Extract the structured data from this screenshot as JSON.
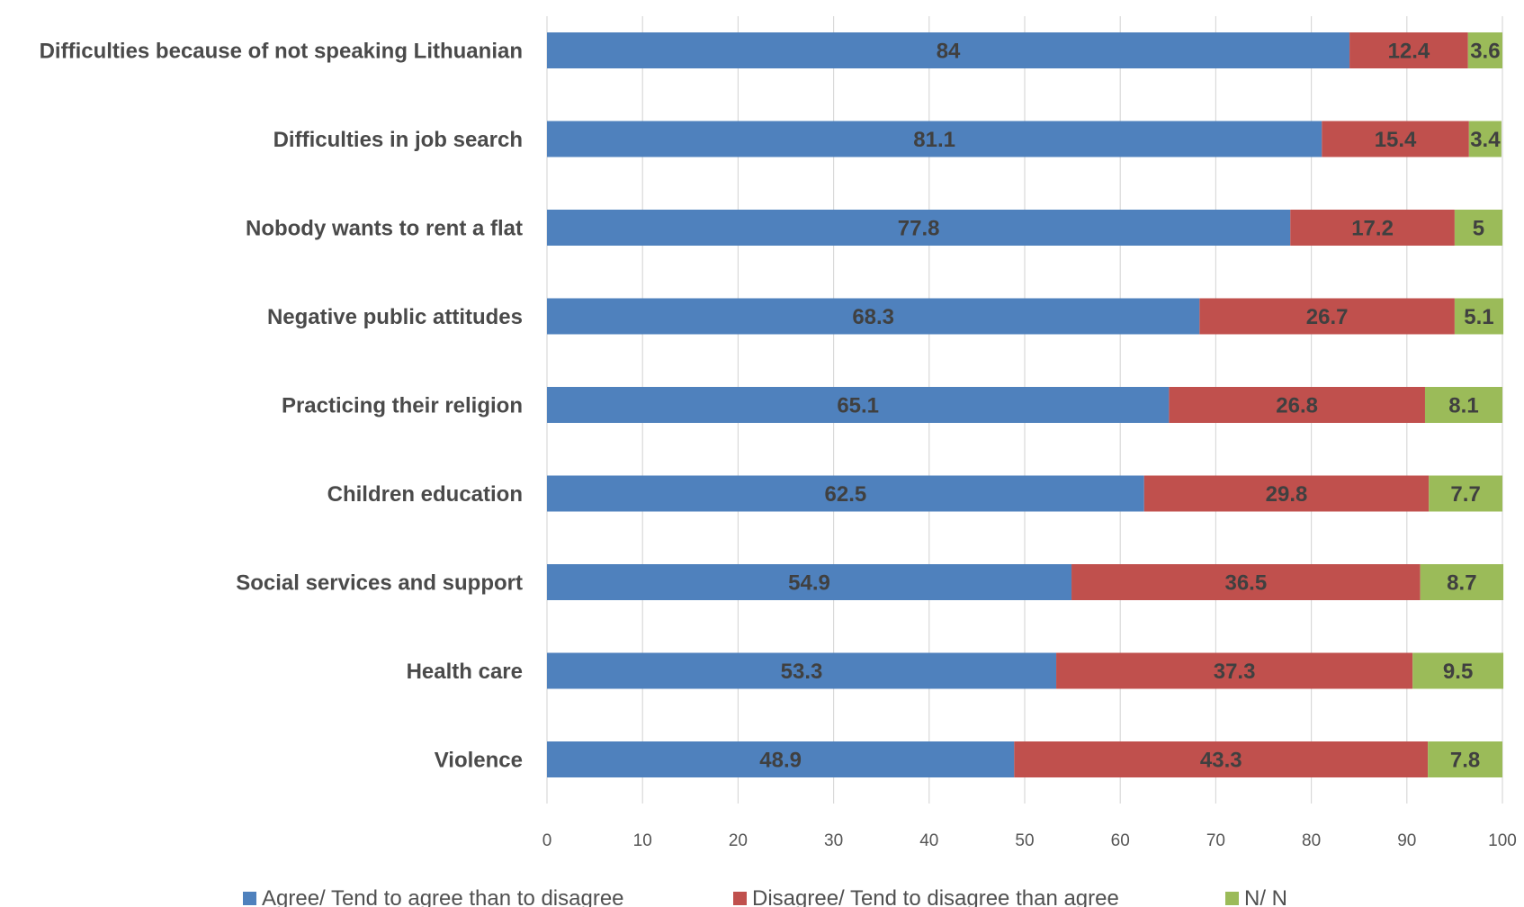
{
  "chart_data": {
    "type": "bar",
    "orientation": "horizontal",
    "stacked": true,
    "categories": [
      "Difficulties because of not speaking Lithuanian",
      "Difficulties in job search",
      "Nobody wants to rent a flat",
      "Negative public attitudes",
      "Practicing their religion",
      "Children education",
      "Social services and support",
      "Health care",
      "Violence"
    ],
    "series": [
      {
        "name": "Agree/ Tend to agree than to disagree",
        "color": "#4F81BD",
        "values": [
          84,
          81.1,
          77.8,
          68.3,
          65.1,
          62.5,
          54.9,
          53.3,
          48.9
        ]
      },
      {
        "name": "Disagree/ Tend to disagree than agree",
        "color": "#C0504D",
        "values": [
          12.4,
          15.4,
          17.2,
          26.7,
          26.8,
          29.8,
          36.5,
          37.3,
          43.3
        ]
      },
      {
        "name": "N/ N",
        "color": "#9BBB59",
        "values": [
          3.6,
          3.4,
          5,
          5.1,
          8.1,
          7.7,
          8.7,
          9.5,
          7.8
        ]
      }
    ],
    "xlim": [
      0,
      100
    ],
    "xticks": [
      0,
      10,
      20,
      30,
      40,
      50,
      60,
      70,
      80,
      90,
      100
    ],
    "grid": "vertical",
    "legend": "bottom",
    "title": "",
    "xlabel": "",
    "ylabel": ""
  }
}
